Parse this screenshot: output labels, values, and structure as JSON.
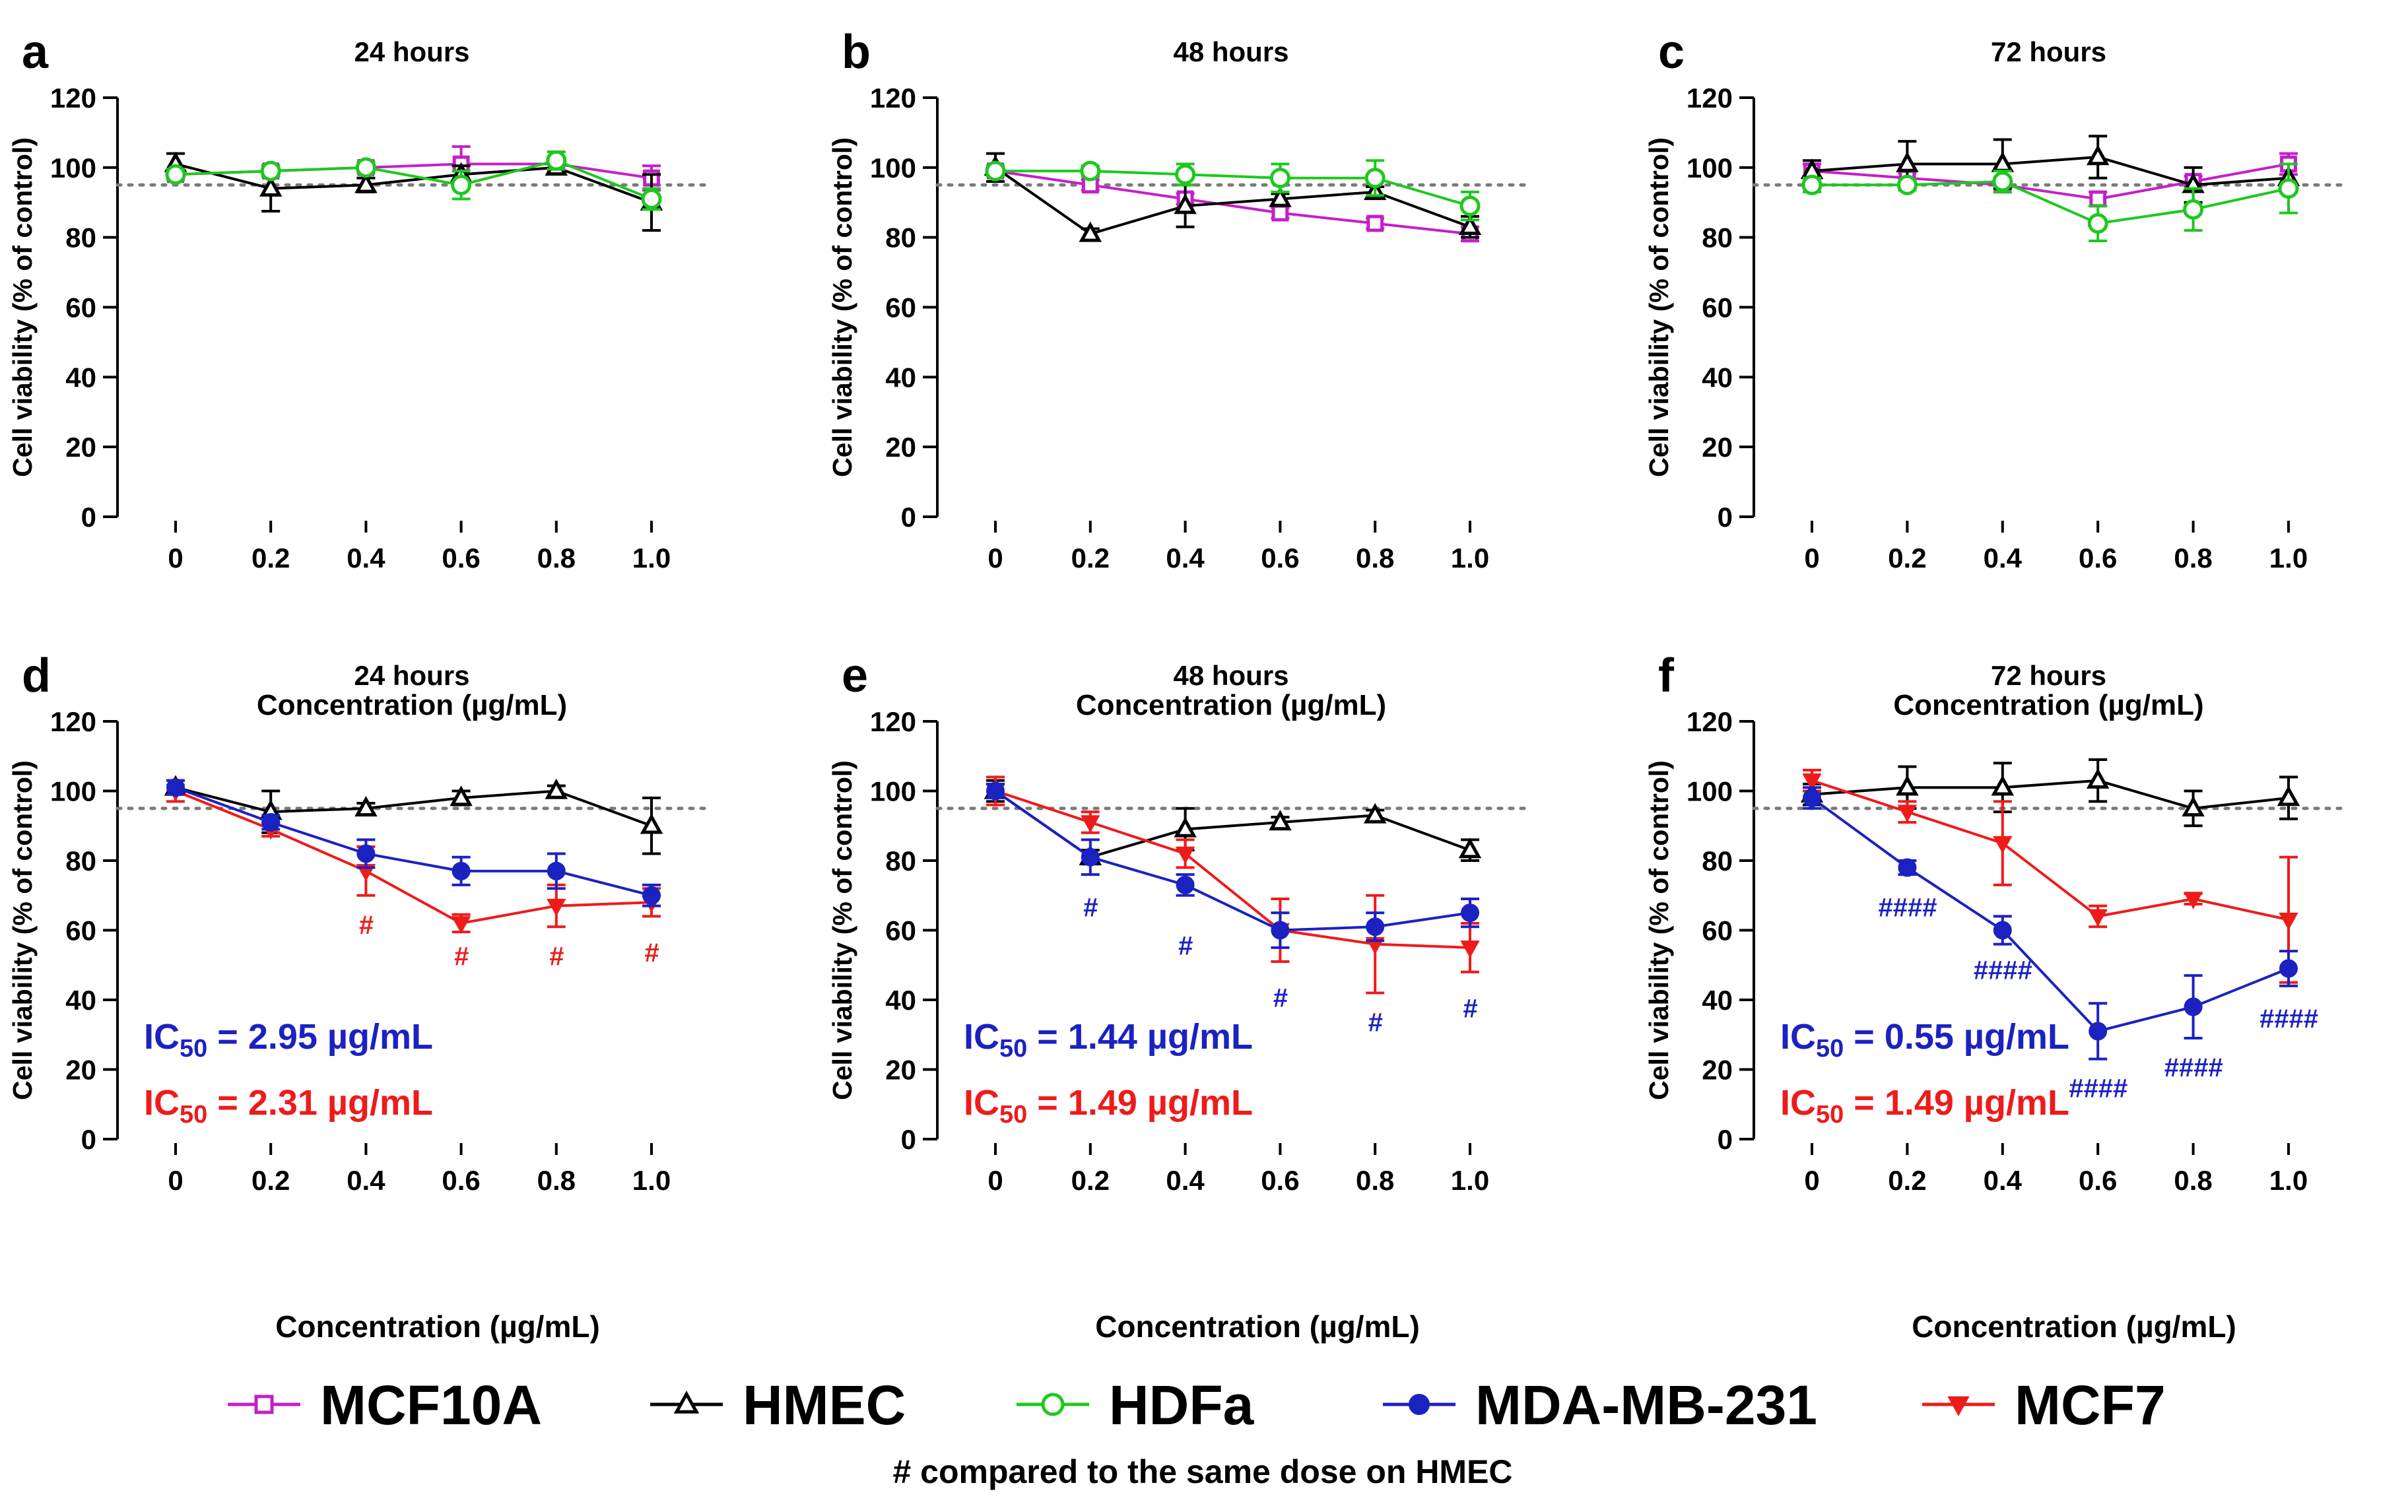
{
  "shared": {
    "x_categories": [
      "0",
      "0.2",
      "0.4",
      "0.6",
      "0.8",
      "1.0"
    ],
    "y_ticks": [
      0,
      20,
      40,
      60,
      80,
      100,
      120
    ],
    "ylim": [
      0,
      120
    ],
    "ylabel": "Cell viability (% of control)",
    "xlabel": "Concentration (µg/mL)",
    "reference_line": 95
  },
  "series_styles": {
    "MCF10A": {
      "color": "#c41fc8",
      "marker": "square-open"
    },
    "HMEC": {
      "color": "#000000",
      "marker": "triangle-open"
    },
    "HDFa": {
      "color": "#1ec81e",
      "marker": "circle-open"
    },
    "MDA-MB-231": {
      "color": "#1c22c0",
      "marker": "circle-filled"
    },
    "MCF7": {
      "color": "#ee1b1b",
      "marker": "triangle-down-filled"
    }
  },
  "chart_data": [
    {
      "type": "line",
      "panel_label": "a",
      "title": "24 hours",
      "series": [
        {
          "name": "MCF10A",
          "values": [
            98,
            99,
            100,
            101,
            101,
            97
          ],
          "errors": [
            1.5,
            1.5,
            1.5,
            5,
            2,
            3.5
          ]
        },
        {
          "name": "HMEC",
          "values": [
            101,
            94,
            95,
            98,
            100,
            90
          ],
          "errors": [
            3,
            6.5,
            2,
            2.5,
            1.5,
            8
          ]
        },
        {
          "name": "HDFa",
          "values": [
            98,
            99,
            100,
            95,
            102,
            91
          ],
          "errors": [
            1.5,
            1.5,
            1.5,
            4,
            2.5,
            3
          ]
        }
      ]
    },
    {
      "type": "line",
      "panel_label": "b",
      "title": "48 hours",
      "series": [
        {
          "name": "MCF10A",
          "values": [
            99,
            95,
            91,
            87,
            84,
            81
          ],
          "errors": [
            1.5,
            1.5,
            1.5,
            1.5,
            1.5,
            2
          ]
        },
        {
          "name": "HMEC",
          "values": [
            100,
            81,
            89,
            91,
            93,
            83
          ],
          "errors": [
            4,
            1.5,
            6,
            1.5,
            1.5,
            3
          ]
        },
        {
          "name": "HDFa",
          "values": [
            99,
            99,
            98,
            97,
            97,
            89
          ],
          "errors": [
            1.5,
            1.5,
            3,
            4,
            5,
            4
          ]
        }
      ]
    },
    {
      "type": "line",
      "panel_label": "c",
      "title": "72 hours",
      "series": [
        {
          "name": "MCF10A",
          "values": [
            99,
            97,
            95,
            91,
            96,
            101
          ],
          "errors": [
            2,
            1.5,
            2,
            2,
            1.5,
            3
          ]
        },
        {
          "name": "HMEC",
          "values": [
            99,
            101,
            101,
            103,
            95,
            97
          ],
          "errors": [
            3,
            6.5,
            7,
            6,
            5,
            4
          ]
        },
        {
          "name": "HDFa",
          "values": [
            95,
            95,
            96,
            84,
            88,
            94
          ],
          "errors": [
            2,
            1.5,
            3,
            5,
            6,
            7
          ]
        }
      ]
    },
    {
      "type": "line",
      "panel_label": "d",
      "title": "24 hours",
      "ic50": [
        {
          "series": "MDA-MB-231",
          "prefix": "IC",
          "subscript": "50",
          "value": " = 2.95 µg/mL"
        },
        {
          "series": "MCF7",
          "prefix": "IC",
          "subscript": "50",
          "value": " = 2.31 µg/mL"
        }
      ],
      "significance": [
        {
          "x": 2,
          "y": 59,
          "text": "#",
          "series": "MCF7"
        },
        {
          "x": 3,
          "y": 50,
          "text": "#",
          "series": "MCF7"
        },
        {
          "x": 4,
          "y": 50,
          "text": "#",
          "series": "MCF7"
        },
        {
          "x": 5,
          "y": 51,
          "text": "#",
          "series": "MCF7"
        }
      ],
      "series": [
        {
          "name": "HMEC",
          "values": [
            101,
            94,
            95,
            98,
            100,
            90
          ],
          "errors": [
            2,
            6,
            1.5,
            2,
            1.5,
            8
          ]
        },
        {
          "name": "MCF7",
          "values": [
            100,
            89,
            77,
            62,
            67,
            68
          ],
          "errors": [
            3,
            2,
            7,
            2.5,
            6,
            4
          ]
        },
        {
          "name": "MDA-MB-231",
          "values": [
            101,
            91,
            82,
            77,
            77,
            70
          ],
          "errors": [
            2,
            2,
            4,
            4,
            5,
            3
          ]
        }
      ]
    },
    {
      "type": "line",
      "panel_label": "e",
      "title": "48 hours",
      "ic50": [
        {
          "series": "MDA-MB-231",
          "prefix": "IC",
          "subscript": "50",
          "value": " = 1.44 µg/mL"
        },
        {
          "series": "MCF7",
          "prefix": "IC",
          "subscript": "50",
          "value": " = 1.49 µg/mL"
        }
      ],
      "significance": [
        {
          "x": 1,
          "y": 64,
          "text": "#",
          "series": "MDA-MB-231"
        },
        {
          "x": 2,
          "y": 53,
          "text": "#",
          "series": "MDA-MB-231"
        },
        {
          "x": 3,
          "y": 38,
          "text": "#",
          "series": "MDA-MB-231"
        },
        {
          "x": 4,
          "y": 31,
          "text": "#",
          "series": "MDA-MB-231"
        },
        {
          "x": 5,
          "y": 35,
          "text": "#",
          "series": "MDA-MB-231"
        }
      ],
      "series": [
        {
          "name": "HMEC",
          "values": [
            100,
            81,
            89,
            91,
            93,
            83
          ],
          "errors": [
            3,
            2,
            6,
            1.5,
            1.5,
            3
          ]
        },
        {
          "name": "MCF7",
          "values": [
            100,
            91,
            82,
            60,
            56,
            55
          ],
          "errors": [
            4,
            3,
            4,
            9,
            14,
            7
          ]
        },
        {
          "name": "MDA-MB-231",
          "values": [
            100,
            81,
            73,
            60,
            61,
            65
          ],
          "errors": [
            2,
            5,
            3,
            5,
            4,
            4
          ]
        }
      ]
    },
    {
      "type": "line",
      "panel_label": "f",
      "title": "72 hours",
      "ic50": [
        {
          "series": "MDA-MB-231",
          "prefix": "IC",
          "subscript": "50",
          "value": " = 0.55 µg/mL"
        },
        {
          "series": "MCF7",
          "prefix": "IC",
          "subscript": "50",
          "value": " = 1.49 µg/mL"
        }
      ],
      "significance": [
        {
          "x": 1,
          "y": 64,
          "text": "####",
          "series": "MDA-MB-231"
        },
        {
          "x": 2,
          "y": 46,
          "text": "####",
          "series": "MDA-MB-231"
        },
        {
          "x": 3,
          "y": 12,
          "text": "####",
          "series": "MDA-MB-231"
        },
        {
          "x": 4,
          "y": 18,
          "text": "####",
          "series": "MDA-MB-231"
        },
        {
          "x": 5,
          "y": 32,
          "text": "####",
          "series": "MDA-MB-231"
        }
      ],
      "series": [
        {
          "name": "HMEC",
          "values": [
            99,
            101,
            101,
            103,
            95,
            98
          ],
          "errors": [
            3,
            6,
            7,
            6,
            5,
            6
          ]
        },
        {
          "name": "MCF7",
          "values": [
            103,
            94,
            85,
            64,
            69,
            63
          ],
          "errors": [
            3,
            3,
            12,
            3,
            1.5,
            18
          ]
        },
        {
          "name": "MDA-MB-231",
          "values": [
            98,
            78,
            60,
            31,
            38,
            49
          ],
          "errors": [
            3,
            2,
            4,
            8,
            9,
            5
          ]
        }
      ]
    }
  ],
  "legend": {
    "entries": [
      {
        "name": "MCF10A",
        "label": "MCF10A"
      },
      {
        "name": "HMEC",
        "label": "HMEC"
      },
      {
        "name": "HDFa",
        "label": "HDFa"
      },
      {
        "name": "MDA-MB-231",
        "label": "MDA-MB-231"
      },
      {
        "name": "MCF7",
        "label": "MCF7"
      }
    ],
    "note": "# compared to the same dose on HMEC"
  }
}
